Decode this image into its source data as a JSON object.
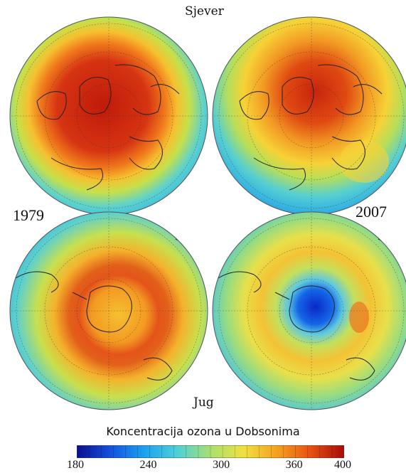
{
  "labels": {
    "north": "Sjever",
    "south": "Jug",
    "year_left": "1979",
    "year_right": "2007"
  },
  "legend": {
    "title": "Koncentracija ozona u Dobsonima",
    "ticks": [
      "180",
      "240",
      "300",
      "360",
      "400"
    ],
    "min": 180,
    "max": 400,
    "colors": [
      "#0a0f8f",
      "#1550e0",
      "#1aa0f0",
      "#4ed0d8",
      "#a8e070",
      "#f0e040",
      "#f5a020",
      "#e85010",
      "#a80a0a"
    ]
  },
  "panels": [
    {
      "name": "north-1979",
      "hemisphere": "north",
      "year": "1979"
    },
    {
      "name": "north-2007",
      "hemisphere": "north",
      "year": "2007"
    },
    {
      "name": "south-1979",
      "hemisphere": "south",
      "year": "1979"
    },
    {
      "name": "south-2007",
      "hemisphere": "south",
      "year": "2007"
    }
  ]
}
